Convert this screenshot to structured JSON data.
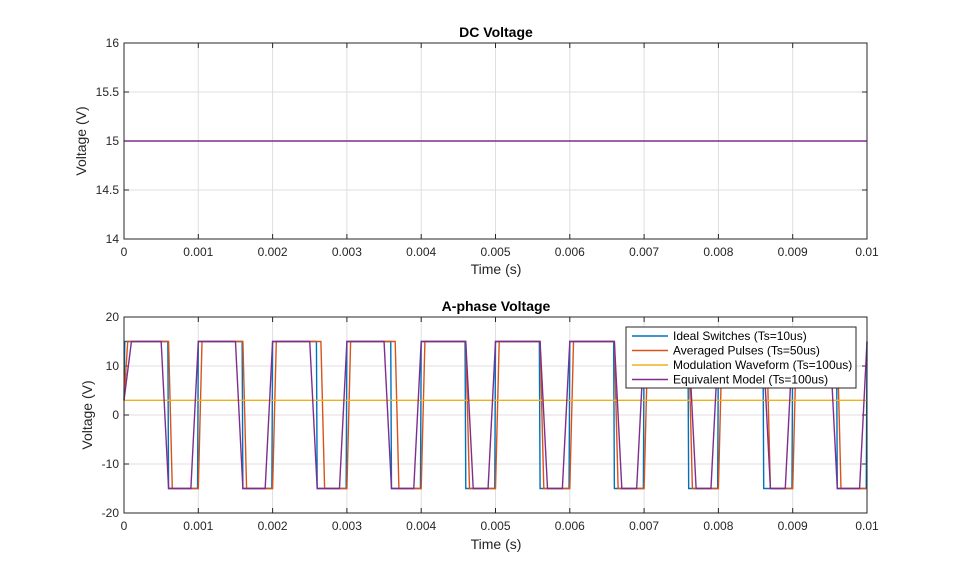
{
  "figure_background": "#ffffff",
  "chart_data": [
    {
      "type": "line",
      "title": "DC Voltage",
      "xlabel": "Time (s)",
      "ylabel": "Voltage (V)",
      "xlim": [
        0,
        0.01
      ],
      "ylim": [
        14,
        16
      ],
      "xticks": [
        "0",
        "0.001",
        "0.002",
        "0.003",
        "0.004",
        "0.005",
        "0.006",
        "0.007",
        "0.008",
        "0.009",
        "0.01"
      ],
      "yticks": [
        "14",
        "14.5",
        "15",
        "15.5",
        "16"
      ],
      "grid": true,
      "series": [
        {
          "color": "#7E2F8E",
          "x": [
            0,
            0.01
          ],
          "y": [
            15,
            15
          ]
        }
      ]
    },
    {
      "type": "line",
      "title": "A-phase Voltage",
      "xlabel": "Time (s)",
      "ylabel": "Voltage (V)",
      "xlim": [
        0,
        0.01
      ],
      "ylim": [
        -20,
        20
      ],
      "xticks": [
        "0",
        "0.001",
        "0.002",
        "0.003",
        "0.004",
        "0.005",
        "0.006",
        "0.007",
        "0.008",
        "0.009",
        "0.01"
      ],
      "yticks": [
        "-20",
        "-10",
        "0",
        "10",
        "20"
      ],
      "grid": true,
      "legend_position": "top-right",
      "square_wave": {
        "period": 0.001,
        "high": 15,
        "low": -15,
        "duty": 0.6
      },
      "series": [
        {
          "name": "Ideal Switches (Ts=10us)",
          "color": "#0072BD",
          "kind": "square",
          "step": 1e-05,
          "offset": 0,
          "start": 3
        },
        {
          "name": "Averaged Pulses (Ts=50us)",
          "color": "#D95319",
          "kind": "square",
          "step": 5e-05,
          "offset": 5e-05,
          "start": 3
        },
        {
          "name": "Modulation Waveform (Ts=100us)",
          "color": "#EDB120",
          "kind": "constant",
          "value": 3
        },
        {
          "name": "Equivalent Model (Ts=100us)",
          "color": "#7E2F8E",
          "kind": "square",
          "step": 0.0001,
          "offset": 0,
          "start": 3
        }
      ]
    }
  ]
}
